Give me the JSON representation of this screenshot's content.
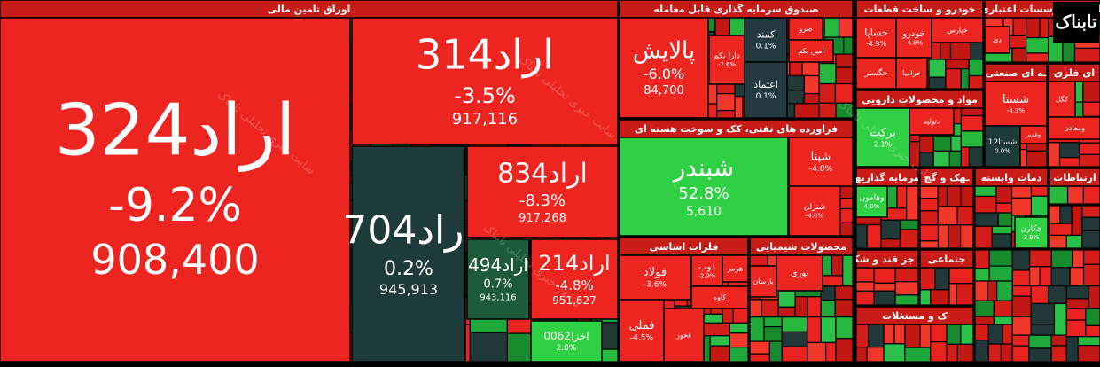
{
  "sectors": [
    {
      "title": "اوراق تامین مالی",
      "tiles": [
        {
          "name": "اراد324",
          "change": "-9.2%",
          "price": "908,400"
        },
        {
          "name": "اراد314",
          "change": "-3.5%",
          "price": "917,116"
        },
        {
          "name": "اراد704",
          "change": "0.2%",
          "price": "945,913"
        },
        {
          "name": "اراد834",
          "change": "-8.3%",
          "price": "917,268"
        },
        {
          "name": "اراد494",
          "change": "0.7%",
          "price": "943,116"
        },
        {
          "name": "اراد214",
          "change": "-4.8%",
          "price": "951,627"
        },
        {
          "name": "اخزا0062",
          "change": "2.8%"
        }
      ]
    },
    {
      "title": "صندوق سرمایه گذاری قابل معامله",
      "tiles": [
        {
          "name": "پالایش",
          "change": "-6.0%",
          "price": "84,700"
        },
        {
          "name": "دارا یکم",
          "change": "-7.6%"
        },
        {
          "name": "کمند",
          "change": "0.1%"
        },
        {
          "name": "اعتماد",
          "change": "0.1%"
        },
        {
          "name": "صرو"
        },
        {
          "name": "امین یکم"
        }
      ]
    },
    {
      "title": "فراورده های نفتی، کک و سوخت هسته ای",
      "tiles": [
        {
          "name": "شبندر",
          "change": "52.8%",
          "price": "5,610"
        },
        {
          "name": "شپنا",
          "change": "-4.8%"
        },
        {
          "name": "شتران",
          "change": "-4.0%"
        }
      ]
    },
    {
      "title": "فلزات اساسی",
      "tiles": [
        {
          "name": "فولاد",
          "change": "-3.6%"
        },
        {
          "name": "ذوب",
          "change": "-2.9%"
        },
        {
          "name": "هرمز"
        },
        {
          "name": "کاوه"
        },
        {
          "name": "فملی",
          "change": "-4.5%"
        },
        {
          "name": "فخوز"
        }
      ]
    },
    {
      "title": "محصولات شیمیایی",
      "tiles": [
        {
          "name": "نوری"
        },
        {
          "name": "پارسان"
        }
      ]
    },
    {
      "title": "خودرو و ساخت قطعات",
      "tiles": [
        {
          "name": "خساپا",
          "change": "-4.9%"
        },
        {
          "name": "خودرو",
          "change": "-4.8%"
        },
        {
          "name": "خپارس"
        },
        {
          "name": "خگستر"
        },
        {
          "name": "خزامیا"
        }
      ]
    },
    {
      "title": "بانکها و موسسات اعتباری",
      "tiles": [
        {
          "name": "دی"
        }
      ]
    },
    {
      "title": "مواد و محصولات دارویی",
      "tiles": [
        {
          "name": "برکت",
          "change": "2.1%"
        },
        {
          "name": "دتولید"
        }
      ]
    },
    {
      "title": "ـه ای صنعتی",
      "tiles": [
        {
          "name": "شستا",
          "change": "-4.3%"
        },
        {
          "name": "شستا12",
          "change": "0.0%"
        },
        {
          "name": "وغدیر"
        }
      ]
    },
    {
      "title": "ای فلزی",
      "tiles": [
        {
          "name": "کگل"
        },
        {
          "name": "ومعادن"
        }
      ]
    },
    {
      "title": "سرمایه گذاریها",
      "tiles": [
        {
          "name": "وهامون",
          "change": "4.0%"
        }
      ]
    },
    {
      "title": "ـهک و گچ",
      "tiles": []
    },
    {
      "title": "دمات وابسته",
      "tiles": [
        {
          "name": "چکارن",
          "change": "3.9%"
        }
      ]
    },
    {
      "title": "ارتباطات",
      "tiles": []
    },
    {
      "title": "ی جز قند و شکر",
      "tiles": []
    },
    {
      "title": "جتماعی",
      "tiles": []
    },
    {
      "title": "ک و مستغلات",
      "tiles": []
    }
  ],
  "watermark": "سایت خبری تحلیلی تابناک",
  "logo": "تابناک"
}
